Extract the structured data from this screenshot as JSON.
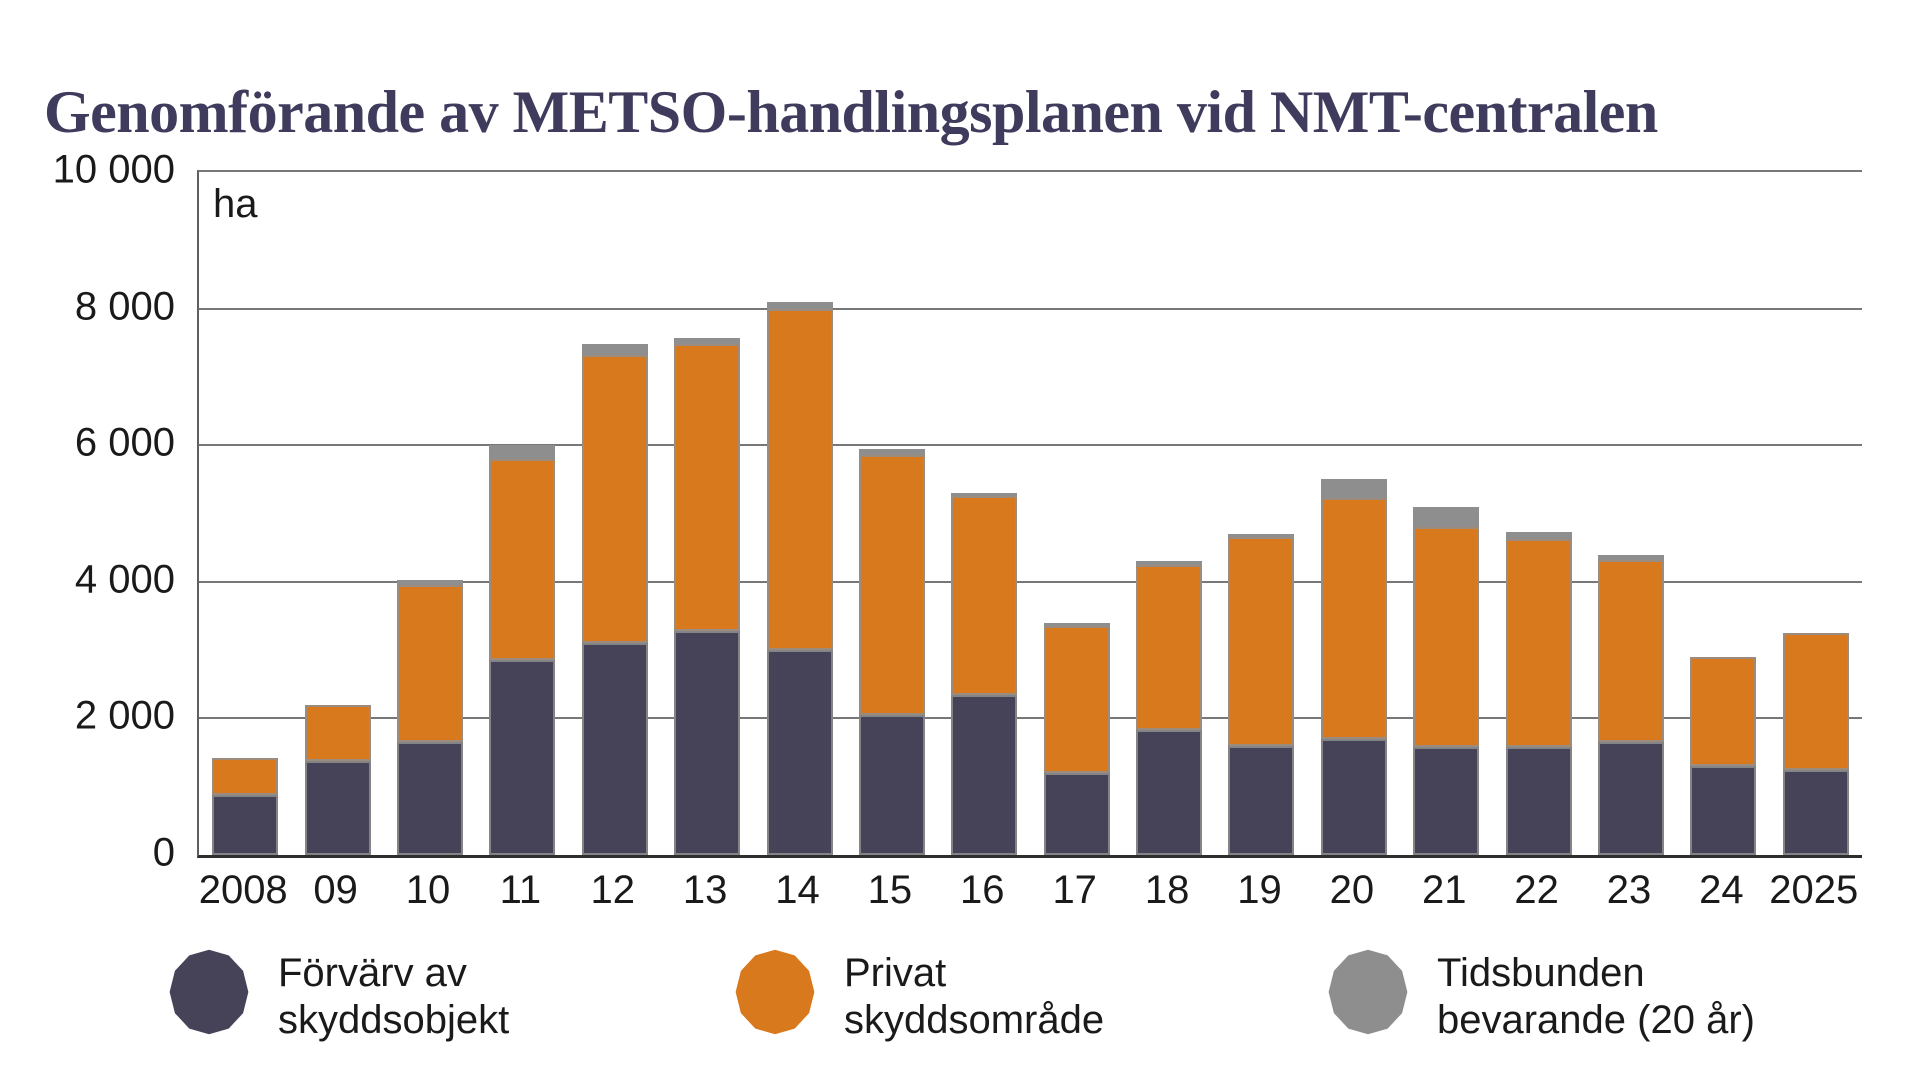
{
  "title": "Genomförande av METSO-handlingsplanen vid NMT-centralen",
  "unit_label": "ha",
  "colors": {
    "dark": "#464359",
    "orange": "#D9791D",
    "gray": "#8E8E8E",
    "title": "#3E3B5C",
    "grid": "#777777",
    "axis": "#2e2e2e",
    "text": "#1a1a1a"
  },
  "chart_data": {
    "type": "bar",
    "stacked": true,
    "title": "Genomförande av METSO-handlingsplanen vid NMT-centralen",
    "ylabel": "ha",
    "xlabel": "",
    "ylim": [
      0,
      10000
    ],
    "ytick_step": 2000,
    "yticks": [
      "0",
      "2 000",
      "4 000",
      "6 000",
      "8 000",
      "10 000"
    ],
    "grid": true,
    "legend_position": "bottom",
    "categories": [
      "2008",
      "09",
      "10",
      "11",
      "12",
      "13",
      "14",
      "15",
      "16",
      "17",
      "18",
      "19",
      "20",
      "21",
      "22",
      "23",
      "24",
      "2025"
    ],
    "series": [
      {
        "name": "Förvärv av skyddsobjekt",
        "color_key": "dark",
        "values": [
          875,
          1375,
          1650,
          2850,
          3100,
          3275,
          3000,
          2050,
          2350,
          1200,
          1825,
          1600,
          1700,
          1575,
          1575,
          1650,
          1300,
          1250
        ]
      },
      {
        "name": "Privat skyddsområde",
        "color_key": "orange",
        "values": [
          550,
          825,
          2300,
          2950,
          4225,
          4200,
          5000,
          3800,
          2900,
          2150,
          2425,
          3050,
          3525,
          3225,
          3050,
          2675,
          1600,
          2000
        ]
      },
      {
        "name": "Tidsbunden bevarande (20 år)",
        "color_key": "gray",
        "values": [
          0,
          0,
          80,
          200,
          150,
          100,
          100,
          100,
          50,
          50,
          50,
          50,
          275,
          300,
          100,
          75,
          0,
          0
        ]
      }
    ]
  },
  "legend": {
    "items": [
      {
        "line1": "Förvärv av",
        "line2": "skyddsobjekt",
        "color_key": "dark"
      },
      {
        "line1": "Privat",
        "line2": "skyddsområde",
        "color_key": "orange"
      },
      {
        "line1": "Tidsbunden",
        "line2": "bevarande (20 år)",
        "color_key": "gray"
      }
    ]
  }
}
